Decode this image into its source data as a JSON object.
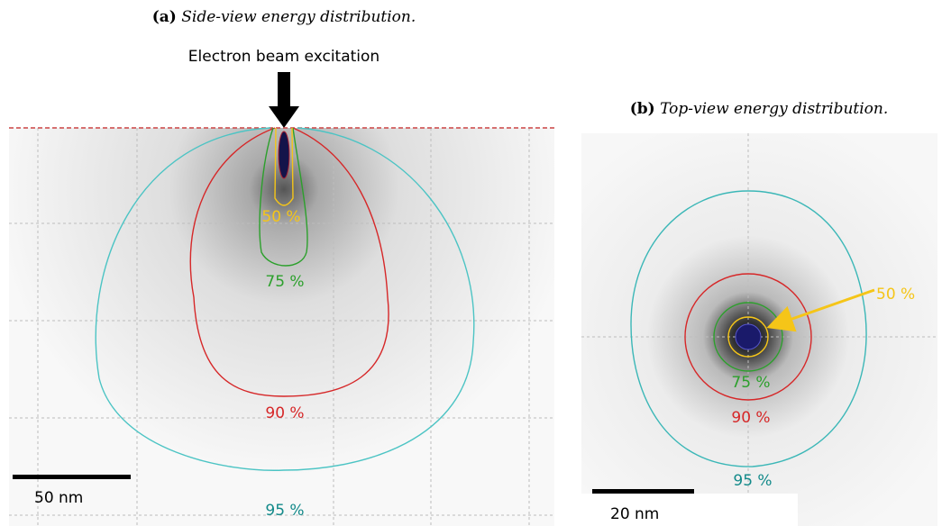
{
  "panels": [
    {
      "label": "(a)",
      "caption": "Side-view energy distribution.",
      "annotation": "Electron beam excitation",
      "contours": [
        "50 %",
        "75 %",
        "90 %",
        "95 %"
      ],
      "scale_bar": "50 nm"
    },
    {
      "label": "(b)",
      "caption": "Top-view energy distribution.",
      "contours": [
        "50 %",
        "75 %",
        "90 %",
        "95 %"
      ],
      "scale_bar": "20 nm"
    }
  ]
}
